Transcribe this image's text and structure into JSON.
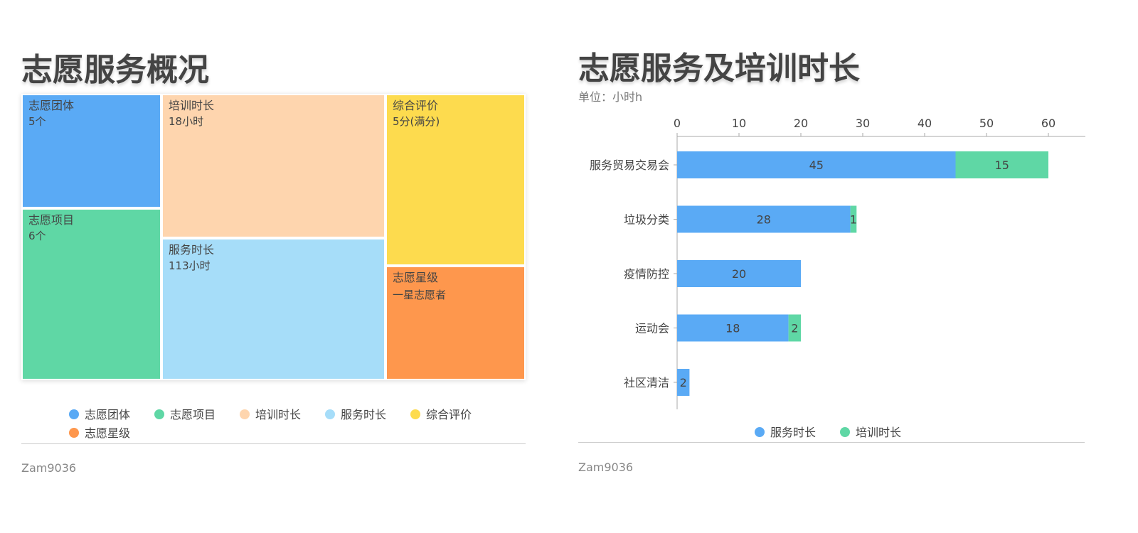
{
  "chart_data": [
    {
      "type": "treemap",
      "title": "志愿服务概况",
      "items": [
        {
          "name": "志愿团体",
          "value_label": "5个",
          "color": "#5aaaf5"
        },
        {
          "name": "志愿项目",
          "value_label": "6个",
          "color": "#5fd7a5"
        },
        {
          "name": "培训时长",
          "value_label": "18小时",
          "color": "#fed5ae"
        },
        {
          "name": "服务时长",
          "value_label": "113小时",
          "color": "#a6ddf9"
        },
        {
          "name": "综合评价",
          "value_label": "5分(满分)",
          "color": "#fddb4e"
        },
        {
          "name": "志愿星级",
          "value_label": "一星志愿者",
          "color": "#fe974d"
        }
      ],
      "legend": [
        "志愿团体",
        "志愿项目",
        "培训时长",
        "服务时长",
        "综合评价",
        "志愿星级"
      ],
      "legend_placement": "bottom",
      "footer": "Zam9036"
    },
    {
      "type": "bar",
      "orientation": "horizontal",
      "stacked": true,
      "title": "志愿服务及培训时长",
      "subtitle": "单位：小时h",
      "categories": [
        "服务贸易交易会",
        "垃圾分类",
        "疫情防控",
        "运动会",
        "社区清洁"
      ],
      "series": [
        {
          "name": "服务时长",
          "values": [
            45,
            28,
            20,
            18,
            2
          ],
          "color": "#5aaaf5"
        },
        {
          "name": "培训时长",
          "values": [
            15,
            1,
            0,
            2,
            0
          ],
          "color": "#5fd7a5"
        }
      ],
      "xlim": [
        0,
        60
      ],
      "xticks": [
        0,
        10,
        20,
        30,
        40,
        50,
        60
      ],
      "x_axis_position": "top",
      "legend_placement": "bottom",
      "footer": "Zam9036"
    }
  ]
}
